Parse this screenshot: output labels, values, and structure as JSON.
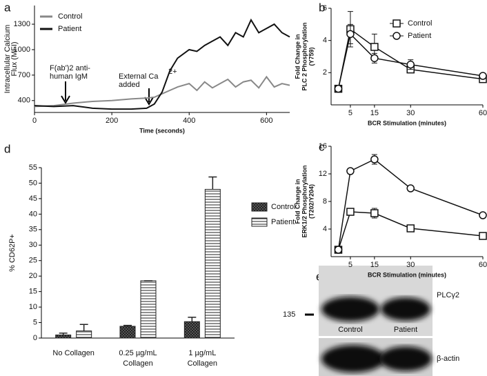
{
  "chart_data": [
    {
      "type": "line",
      "panel": "a",
      "xlabel": "Time (seconds)",
      "ylabel": [
        "Intracellular Calcium",
        "Flux (MFI)"
      ],
      "x": [
        0,
        50,
        100,
        150,
        200,
        250,
        290,
        310,
        330,
        350,
        370,
        400,
        420,
        440,
        460,
        480,
        500,
        520,
        540,
        560,
        580,
        600,
        620,
        640,
        660
      ],
      "series": [
        {
          "name": "Control",
          "color": "#888888",
          "width": 2,
          "values": [
            330,
            340,
            370,
            390,
            400,
            420,
            430,
            440,
            480,
            520,
            560,
            600,
            520,
            620,
            550,
            600,
            650,
            560,
            620,
            640,
            550,
            680,
            560,
            600,
            580
          ]
        },
        {
          "name": "Patient",
          "color": "#111111",
          "width": 2,
          "values": [
            340,
            330,
            340,
            310,
            300,
            300,
            310,
            360,
            500,
            750,
            900,
            1000,
            980,
            1050,
            1100,
            1150,
            1050,
            1200,
            1150,
            1350,
            1200,
            1250,
            1300,
            1200,
            1150
          ]
        }
      ],
      "xlim": [
        0,
        660
      ],
      "xticks": [
        0,
        200,
        400,
        600
      ],
      "ylim": [
        260,
        1520
      ],
      "yticks": [
        400,
        700,
        1000,
        1300
      ],
      "legend": "upper left",
      "annotations": [
        [
          "F(ab')2 anti-",
          "human IgM"
        ],
        [
          "External Ca",
          "2+",
          "added"
        ]
      ]
    },
    {
      "type": "line",
      "panel": "b",
      "xlabel": "BCR Stimulation (minutes)",
      "ylabel": [
        "Fold Change in",
        "PLC 2 Phosphorylation",
        "(Y759)"
      ],
      "x": [
        0,
        5,
        15,
        30,
        60
      ],
      "series": [
        {
          "name": "Control",
          "color": "#111111",
          "marker": "square",
          "values": [
            1,
            4.7,
            3.6,
            2.2,
            1.6
          ],
          "errors": [
            0.2,
            1.1,
            0.8,
            0.2,
            0.1
          ]
        },
        {
          "name": "Patient",
          "color": "#111111",
          "marker": "circle",
          "values": [
            1,
            4.4,
            2.9,
            2.5,
            1.8
          ],
          "errors": [
            0.1,
            0.6,
            0.3,
            0.3,
            0.1
          ]
        }
      ],
      "xlim": [
        -3,
        60
      ],
      "xticks": [
        5,
        15,
        30,
        60
      ],
      "ylim": [
        0,
        6
      ],
      "yticks": [
        2,
        4,
        6
      ],
      "legend": "upper right"
    },
    {
      "type": "line",
      "panel": "c",
      "xlabel": "BCR Stimulation (minutes)",
      "ylabel": [
        "Fold Change in",
        "ERK1/2 Phosphorylation",
        "(T202/Y204)"
      ],
      "x": [
        0,
        5,
        15,
        30,
        60
      ],
      "series": [
        {
          "name": "Control",
          "color": "#111111",
          "marker": "square",
          "values": [
            1,
            6.5,
            6.3,
            4.1,
            3.0
          ],
          "errors": [
            0.3,
            0.3,
            0.7,
            0.3,
            0.2
          ]
        },
        {
          "name": "Patient",
          "color": "#111111",
          "marker": "circle",
          "values": [
            1,
            12.4,
            14.1,
            9.9,
            6.0
          ],
          "errors": [
            0.2,
            0.3,
            0.7,
            0.3,
            0.2
          ]
        }
      ],
      "xlim": [
        -3,
        60
      ],
      "xticks": [
        5,
        15,
        30,
        60
      ],
      "ylim": [
        0,
        16
      ],
      "yticks": [
        4,
        8,
        12,
        16
      ]
    },
    {
      "type": "bar",
      "panel": "d",
      "ylabel": [
        "% CD62P+"
      ],
      "categories": [
        [
          "No Collagen"
        ],
        [
          "0.25 µg/mL",
          "Collagen"
        ],
        [
          "1 µg/mL",
          "Collagen"
        ]
      ],
      "series": [
        {
          "name": "Control",
          "color": "#333333",
          "pattern": "checker",
          "values": [
            1.0,
            3.8,
            5.3
          ],
          "errors": [
            0.6,
            0.3,
            1.4
          ]
        },
        {
          "name": "Patient",
          "color": "#ffffff",
          "pattern": "stripes",
          "values": [
            2.3,
            18.5,
            48
          ],
          "errors": [
            2.1,
            0,
            4
          ]
        }
      ],
      "ylim": [
        0,
        55
      ],
      "yticks": [
        0,
        5,
        10,
        15,
        20,
        25,
        30,
        35,
        40,
        45,
        50,
        55
      ],
      "legend": "right"
    }
  ],
  "panel_e": {
    "panel": "e",
    "marker": "135",
    "lane_labels": [
      "Control",
      "Patient"
    ],
    "bands": [
      "PLCγ2",
      "β-actin"
    ]
  }
}
